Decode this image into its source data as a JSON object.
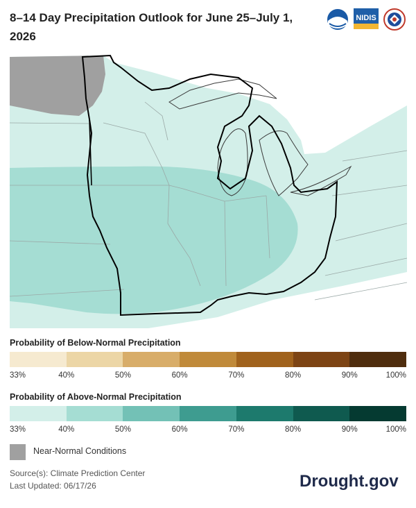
{
  "title": "8–14 Day Precipitation Outlook for June 25–July 1, 2026",
  "logos": {
    "noaa": "NOAA",
    "nidis": "NIDIS",
    "nws": "National Weather Service"
  },
  "legend_below": {
    "title": "Probability of Below-Normal Precipitation",
    "colors": [
      "#f6ead0",
      "#ecd6a6",
      "#d8ad69",
      "#c08a3a",
      "#a0621c",
      "#7d4414",
      "#4f2d0e"
    ],
    "ticks": [
      "33%",
      "40%",
      "50%",
      "60%",
      "70%",
      "80%",
      "90%",
      "100%"
    ]
  },
  "legend_above": {
    "title": "Probability of Above-Normal Precipitation",
    "colors": [
      "#d3efe9",
      "#a5ddd3",
      "#73c1b6",
      "#3e9c90",
      "#1d7a6d",
      "#0f5a4f",
      "#053a31"
    ],
    "ticks": [
      "33%",
      "40%",
      "50%",
      "60%",
      "70%",
      "80%",
      "90%",
      "100%"
    ]
  },
  "near_normal": {
    "label": "Near-Normal Conditions",
    "color": "#a0a0a0"
  },
  "map": {
    "regions": [
      {
        "category": "Near-Normal",
        "color": "#a0a0a0"
      },
      {
        "category": "Above-Normal 33–40%",
        "color": "#d3efe9"
      },
      {
        "category": "Above-Normal 40–50%",
        "color": "#a5ddd3"
      }
    ]
  },
  "source_line": "Source(s): Climate Prediction Center",
  "updated_line": "Last Updated: 06/17/26",
  "brand": "Drought.gov"
}
